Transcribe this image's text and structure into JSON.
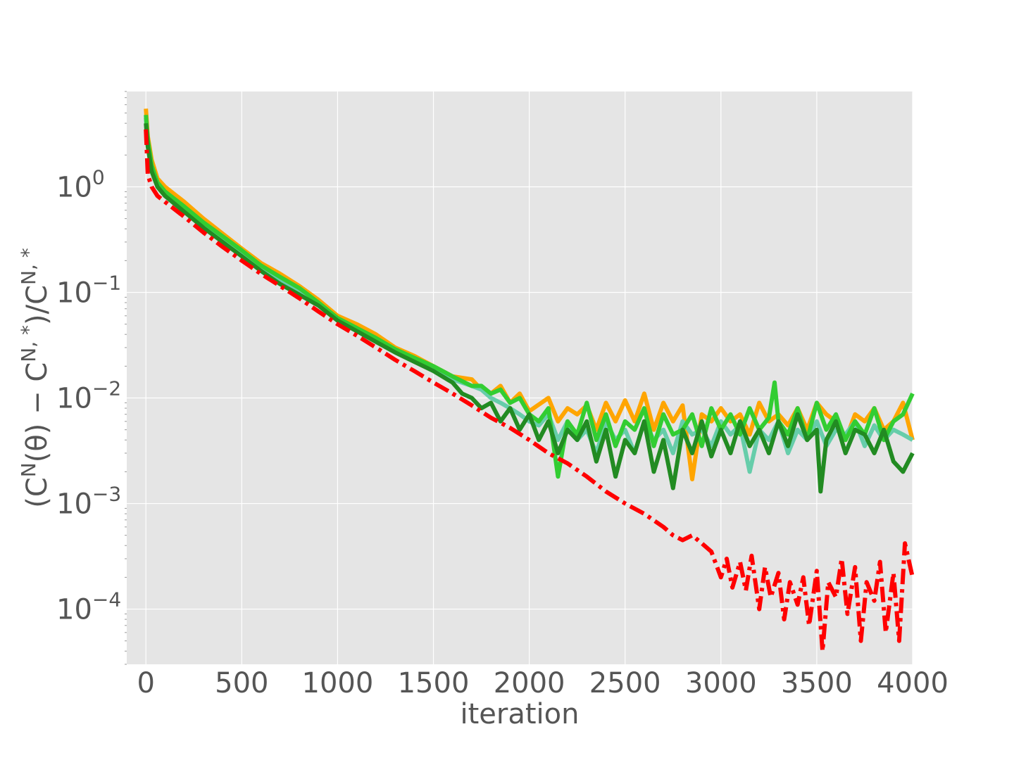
{
  "chart_data": {
    "type": "line",
    "title": "",
    "xlabel": "iteration",
    "ylabel": "(C^N(θ) − C^{N,*})/C^{N,*}",
    "xlim": [
      -100,
      4000
    ],
    "ylim": [
      3e-05,
      8
    ],
    "yscale": "log",
    "grid": true,
    "background": "#e5e5e5",
    "xticks": [
      {
        "value": 0,
        "label": "0"
      },
      {
        "value": 500,
        "label": "500"
      },
      {
        "value": 1000,
        "label": "1000"
      },
      {
        "value": 1500,
        "label": "1500"
      },
      {
        "value": 2000,
        "label": "2000"
      },
      {
        "value": 2500,
        "label": "2500"
      },
      {
        "value": 3000,
        "label": "3000"
      },
      {
        "value": 3500,
        "label": "3500"
      },
      {
        "value": 4000,
        "label": "4000"
      }
    ],
    "yticks": [
      {
        "value": 1,
        "base": "10",
        "exp": "0"
      },
      {
        "value": 0.1,
        "base": "10",
        "exp": "−1"
      },
      {
        "value": 0.01,
        "base": "10",
        "exp": "−2"
      },
      {
        "value": 0.001,
        "base": "10",
        "exp": "−3"
      },
      {
        "value": 0.0001,
        "base": "10",
        "exp": "−4"
      }
    ],
    "series": [
      {
        "color": "#ffa500",
        "style": "solid",
        "x": [
          0,
          10,
          30,
          60,
          100,
          200,
          300,
          400,
          500,
          600,
          700,
          800,
          900,
          1000,
          1100,
          1200,
          1300,
          1400,
          1500,
          1600,
          1700,
          1750,
          1800,
          1850,
          1900,
          1950,
          2000,
          2100,
          2150,
          2200,
          2250,
          2300,
          2350,
          2400,
          2450,
          2500,
          2550,
          2600,
          2650,
          2700,
          2750,
          2800,
          2850,
          2900,
          2950,
          3000,
          3050,
          3100,
          3150,
          3200,
          3250,
          3300,
          3350,
          3400,
          3450,
          3500,
          3550,
          3600,
          3650,
          3700,
          3750,
          3800,
          3850,
          3900,
          3950,
          4000
        ],
        "y": [
          5.5,
          3.0,
          1.8,
          1.2,
          1.0,
          0.72,
          0.5,
          0.36,
          0.26,
          0.19,
          0.15,
          0.115,
          0.085,
          0.06,
          0.05,
          0.04,
          0.03,
          0.025,
          0.02,
          0.016,
          0.015,
          0.012,
          0.011,
          0.013,
          0.009,
          0.011,
          0.0075,
          0.01,
          0.006,
          0.008,
          0.007,
          0.0085,
          0.005,
          0.009,
          0.006,
          0.0095,
          0.006,
          0.011,
          0.005,
          0.009,
          0.006,
          0.0085,
          0.0017,
          0.007,
          0.006,
          0.008,
          0.006,
          0.007,
          0.0045,
          0.009,
          0.006,
          0.007,
          0.0055,
          0.008,
          0.005,
          0.009,
          0.007,
          0.006,
          0.004,
          0.007,
          0.006,
          0.008,
          0.005,
          0.006,
          0.009,
          0.004
        ]
      },
      {
        "color": "#66cdaa",
        "style": "solid",
        "x": [
          0,
          10,
          30,
          60,
          100,
          200,
          300,
          400,
          500,
          600,
          700,
          800,
          900,
          1000,
          1100,
          1200,
          1300,
          1400,
          1500,
          1600,
          1700,
          1750,
          1800,
          1850,
          1900,
          1950,
          2000,
          2050,
          2100,
          2150,
          2200,
          2250,
          2300,
          2350,
          2400,
          2450,
          2500,
          2550,
          2600,
          2650,
          2700,
          2750,
          2800,
          2850,
          2900,
          2950,
          3000,
          3050,
          3100,
          3150,
          3200,
          3250,
          3300,
          3350,
          3400,
          3450,
          3500,
          3550,
          3600,
          3650,
          3700,
          3750,
          3800,
          3850,
          3900,
          3950,
          4000
        ],
        "y": [
          4.5,
          2.6,
          1.5,
          1.05,
          0.85,
          0.6,
          0.43,
          0.32,
          0.23,
          0.17,
          0.13,
          0.1,
          0.078,
          0.056,
          0.045,
          0.036,
          0.028,
          0.023,
          0.019,
          0.015,
          0.013,
          0.012,
          0.01,
          0.009,
          0.008,
          0.007,
          0.006,
          0.0055,
          0.007,
          0.004,
          0.006,
          0.004,
          0.005,
          0.003,
          0.006,
          0.004,
          0.005,
          0.003,
          0.006,
          0.004,
          0.005,
          0.003,
          0.006,
          0.0045,
          0.005,
          0.0035,
          0.006,
          0.0045,
          0.0055,
          0.002,
          0.005,
          0.004,
          0.006,
          0.003,
          0.005,
          0.004,
          0.006,
          0.0035,
          0.005,
          0.0045,
          0.006,
          0.0035,
          0.0055,
          0.004,
          0.005,
          0.0045,
          0.004
        ]
      },
      {
        "color": "#32cd32",
        "style": "solid",
        "x": [
          0,
          10,
          30,
          60,
          100,
          200,
          300,
          400,
          500,
          600,
          700,
          800,
          900,
          1000,
          1100,
          1200,
          1300,
          1400,
          1500,
          1600,
          1700,
          1750,
          1800,
          1850,
          1900,
          1950,
          2000,
          2050,
          2100,
          2150,
          2200,
          2250,
          2300,
          2350,
          2400,
          2450,
          2500,
          2550,
          2600,
          2650,
          2700,
          2750,
          2800,
          2850,
          2900,
          2950,
          3000,
          3050,
          3100,
          3150,
          3200,
          3250,
          3280,
          3300,
          3350,
          3400,
          3450,
          3500,
          3550,
          3600,
          3650,
          3700,
          3750,
          3800,
          3850,
          3900,
          3950,
          4000
        ],
        "y": [
          4.8,
          2.8,
          1.6,
          1.1,
          0.9,
          0.65,
          0.46,
          0.34,
          0.25,
          0.18,
          0.14,
          0.11,
          0.08,
          0.057,
          0.046,
          0.037,
          0.029,
          0.024,
          0.02,
          0.016,
          0.013,
          0.013,
          0.011,
          0.012,
          0.009,
          0.01,
          0.007,
          0.006,
          0.008,
          0.0018,
          0.006,
          0.0045,
          0.009,
          0.004,
          0.007,
          0.0035,
          0.006,
          0.005,
          0.008,
          0.0035,
          0.007,
          0.0045,
          0.005,
          0.007,
          0.0035,
          0.008,
          0.005,
          0.007,
          0.0045,
          0.008,
          0.005,
          0.0065,
          0.014,
          0.006,
          0.0045,
          0.008,
          0.004,
          0.009,
          0.005,
          0.007,
          0.004,
          0.006,
          0.0045,
          0.008,
          0.004,
          0.006,
          0.007,
          0.011
        ]
      },
      {
        "color": "#228b22",
        "style": "solid",
        "x": [
          0,
          10,
          30,
          60,
          100,
          200,
          300,
          400,
          500,
          600,
          700,
          800,
          900,
          1000,
          1100,
          1200,
          1300,
          1400,
          1500,
          1600,
          1650,
          1700,
          1750,
          1800,
          1850,
          1900,
          1950,
          2000,
          2050,
          2100,
          2150,
          2200,
          2250,
          2300,
          2350,
          2400,
          2450,
          2500,
          2550,
          2600,
          2650,
          2700,
          2750,
          2800,
          2850,
          2900,
          2950,
          3000,
          3050,
          3100,
          3150,
          3200,
          3250,
          3300,
          3350,
          3400,
          3450,
          3500,
          3520,
          3550,
          3600,
          3650,
          3700,
          3750,
          3800,
          3850,
          3900,
          3950,
          4000
        ],
        "y": [
          4.0,
          2.4,
          1.4,
          1.0,
          0.82,
          0.58,
          0.41,
          0.3,
          0.22,
          0.16,
          0.12,
          0.095,
          0.075,
          0.054,
          0.043,
          0.034,
          0.027,
          0.022,
          0.018,
          0.014,
          0.011,
          0.01,
          0.008,
          0.009,
          0.006,
          0.008,
          0.005,
          0.007,
          0.004,
          0.006,
          0.003,
          0.005,
          0.004,
          0.006,
          0.0025,
          0.005,
          0.0018,
          0.004,
          0.003,
          0.006,
          0.002,
          0.004,
          0.0014,
          0.005,
          0.003,
          0.006,
          0.0028,
          0.005,
          0.003,
          0.006,
          0.0035,
          0.005,
          0.003,
          0.006,
          0.0035,
          0.007,
          0.004,
          0.005,
          0.0013,
          0.004,
          0.006,
          0.003,
          0.005,
          0.0045,
          0.003,
          0.005,
          0.0025,
          0.002,
          0.003
        ]
      },
      {
        "color": "#ff0000",
        "style": "dashdot",
        "x": [
          0,
          10,
          30,
          60,
          100,
          200,
          300,
          400,
          500,
          600,
          700,
          800,
          900,
          1000,
          1100,
          1200,
          1300,
          1400,
          1500,
          1600,
          1700,
          1800,
          1900,
          2000,
          2100,
          2200,
          2300,
          2400,
          2500,
          2600,
          2700,
          2750,
          2800,
          2850,
          2900,
          2950,
          3000,
          3030,
          3060,
          3100,
          3130,
          3160,
          3200,
          3230,
          3260,
          3300,
          3330,
          3360,
          3400,
          3430,
          3460,
          3500,
          3530,
          3560,
          3600,
          3630,
          3660,
          3700,
          3730,
          3760,
          3800,
          3830,
          3860,
          3900,
          3930,
          3960,
          4000
        ],
        "y": [
          3.5,
          1.3,
          1.0,
          0.82,
          0.72,
          0.52,
          0.37,
          0.27,
          0.2,
          0.15,
          0.115,
          0.088,
          0.066,
          0.05,
          0.039,
          0.03,
          0.023,
          0.018,
          0.014,
          0.011,
          0.0085,
          0.0065,
          0.0052,
          0.004,
          0.003,
          0.0024,
          0.0018,
          0.0013,
          0.001,
          0.0008,
          0.0006,
          0.0005,
          0.00045,
          0.0005,
          0.00042,
          0.00035,
          0.0002,
          0.0003,
          0.00016,
          0.00028,
          0.00015,
          0.00032,
          0.0001,
          0.00025,
          0.00013,
          0.00022,
          8e-05,
          0.00018,
          0.00011,
          0.0002,
          7e-05,
          0.00023,
          4e-05,
          0.00018,
          0.00013,
          0.0003,
          9e-05,
          0.00025,
          5e-05,
          0.00018,
          0.00012,
          0.00028,
          6e-05,
          0.00022,
          5e-05,
          0.00042,
          0.0002
        ]
      }
    ]
  }
}
